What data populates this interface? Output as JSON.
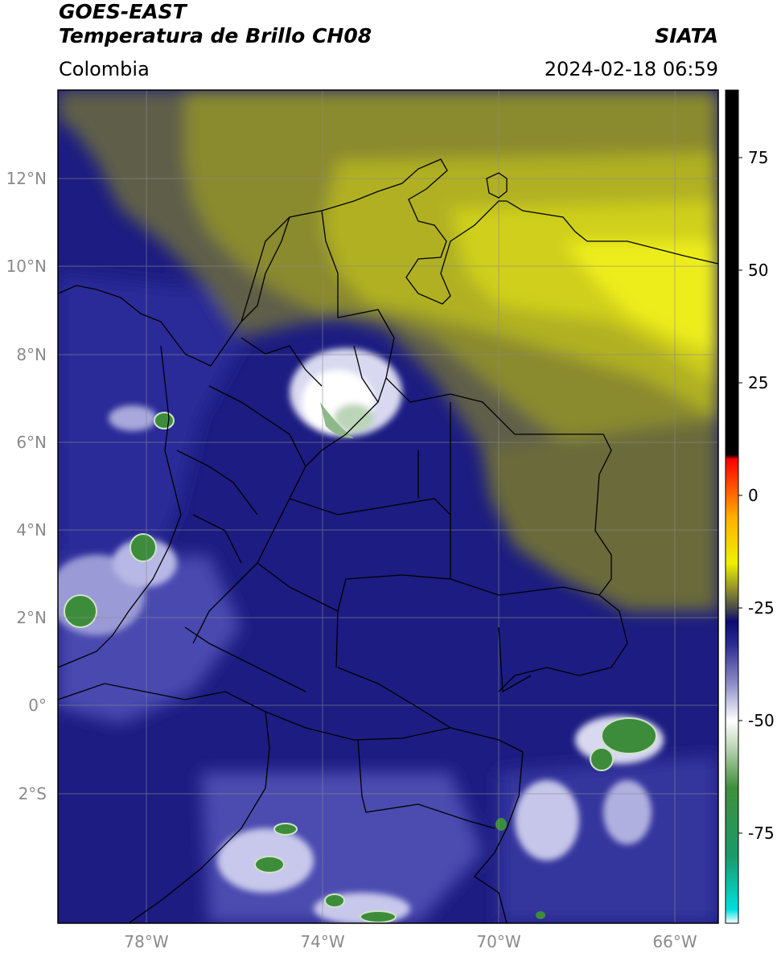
{
  "header": {
    "satellite": "GOES-EAST",
    "product": "Temperatura de Brillo CH08",
    "region": "Colombia",
    "source": "SIATA",
    "datetime": "2024-02-18 06:59"
  },
  "map": {
    "lat_labels": [
      "12°N",
      "10°N",
      "8°N",
      "6°N",
      "4°N",
      "2°N",
      "0°",
      "2°S"
    ],
    "lon_labels": [
      "78°W",
      "74°W",
      "70°W",
      "66°W"
    ],
    "extent": {
      "lon_min": -80,
      "lon_max": -65,
      "lat_min": -5,
      "lat_max": 14
    }
  },
  "colorbar": {
    "ticks": [
      "75",
      "50",
      "25",
      "0",
      "-25",
      "-50",
      "-75"
    ],
    "range": [
      -95,
      90
    ],
    "stops": [
      {
        "value": -95,
        "color": "#ffffff"
      },
      {
        "value": -92,
        "color": "#00e0e0"
      },
      {
        "value": -80,
        "color": "#1a9a6a"
      },
      {
        "value": -65,
        "color": "#3f8f3a"
      },
      {
        "value": -55,
        "color": "#c8dcc0"
      },
      {
        "value": -50,
        "color": "#ffffff"
      },
      {
        "value": -42,
        "color": "#8f90c8"
      },
      {
        "value": -33,
        "color": "#2a2a90"
      },
      {
        "value": -28,
        "color": "#0b0b70"
      },
      {
        "value": -25,
        "color": "#4a4a4a"
      },
      {
        "value": -15,
        "color": "#f0f000"
      },
      {
        "value": -5,
        "color": "#ffb000"
      },
      {
        "value": 8,
        "color": "#ff0000"
      },
      {
        "value": 9,
        "color": "#000000"
      },
      {
        "value": 90,
        "color": "#000000"
      }
    ]
  },
  "colors": {
    "cold_tops": "#0b0b70",
    "warm_dry": "#9a9a22",
    "very_warm": "#e8e820",
    "convective": "#3c8c3c"
  }
}
